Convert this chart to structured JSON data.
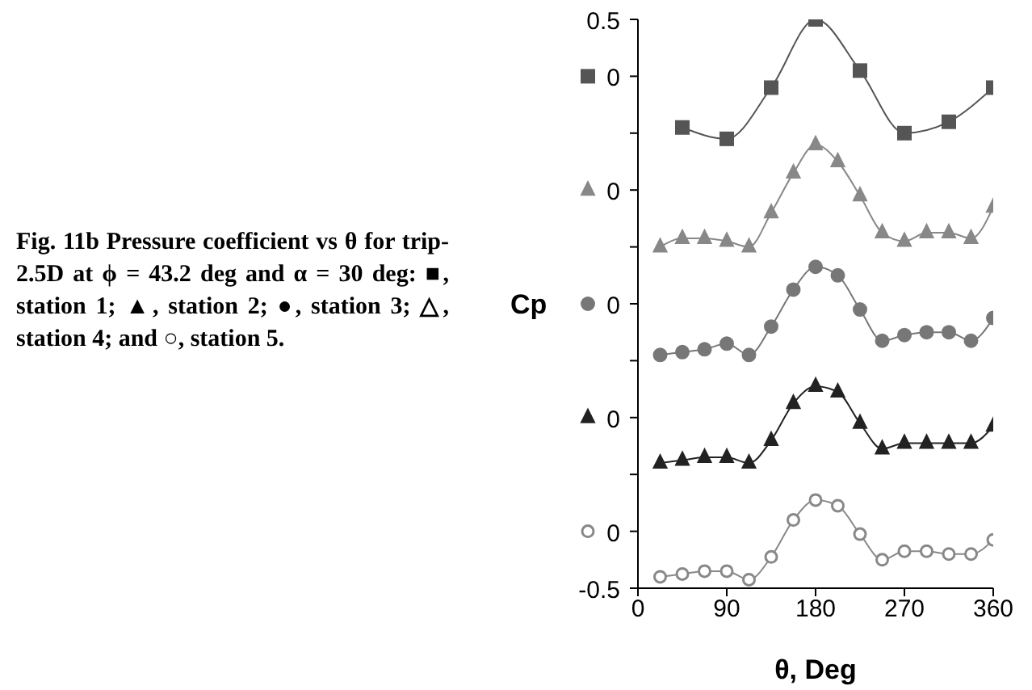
{
  "chart_data": {
    "type": "line",
    "title": "Fig. 11b  Pressure coefficient vs θ for trip-2.5D at ϕ = 43.2 deg and α = 30 deg: ■, station 1; ▲, station 2; ●, station 3; △, station 4; and ○, station 5.",
    "xlabel": "θ, Deg",
    "ylabel": "Cp",
    "xlim": [
      0,
      360
    ],
    "xticks": [
      0,
      90,
      180,
      270,
      360
    ],
    "ylim": [
      -0.5,
      0.5
    ],
    "yticks": [
      0.5,
      {
        "value": 0.4,
        "label": "0"
      },
      {
        "value": 0.3,
        "label": null
      },
      {
        "value": 0.2,
        "label": "0"
      },
      {
        "value": 0.1,
        "label": null
      },
      {
        "value": 0,
        "label": "0"
      },
      {
        "value": -0.1,
        "label": null
      },
      {
        "value": -0.2,
        "label": "0"
      },
      {
        "value": -0.3,
        "label": null
      },
      {
        "value": -0.4,
        "label": "0"
      },
      -0.5
    ],
    "grid": false,
    "legend": false,
    "series": [
      {
        "color": "#555555",
        "marker": "square",
        "x": [
          45,
          90,
          135,
          180,
          225,
          270,
          315,
          360
        ],
        "values": [
          0.31,
          0.29,
          0.38,
          0.5,
          0.41,
          0.3,
          0.32,
          0.38
        ]
      },
      {
        "color": "#888888",
        "marker": "triangle",
        "x": [
          22.5,
          45,
          67.5,
          90,
          112.5,
          135,
          157.5,
          180,
          202.5,
          225,
          247.5,
          270,
          292.5,
          315,
          337.5,
          360
        ],
        "values": [
          0.1,
          0.115,
          0.115,
          0.11,
          0.1,
          0.16,
          0.23,
          0.28,
          0.25,
          0.19,
          0.125,
          0.11,
          0.125,
          0.125,
          0.115,
          0.17
        ]
      },
      {
        "color": "#777777",
        "marker": "circle",
        "x": [
          22.5,
          45,
          67.5,
          90,
          112.5,
          135,
          157.5,
          180,
          202.5,
          225,
          247.5,
          270,
          292.5,
          315,
          337.5,
          360
        ],
        "values": [
          -0.09,
          -0.085,
          -0.08,
          -0.07,
          -0.09,
          -0.04,
          0.025,
          0.065,
          0.05,
          -0.01,
          -0.065,
          -0.055,
          -0.05,
          -0.05,
          -0.065,
          -0.025
        ]
      },
      {
        "color": "#222222",
        "marker": "triangle",
        "x": [
          22.5,
          45,
          67.5,
          90,
          112.5,
          135,
          157.5,
          180,
          202.5,
          225,
          247.5,
          270,
          292.5,
          315,
          337.5,
          360
        ],
        "values": [
          -0.28,
          -0.275,
          -0.27,
          -0.27,
          -0.28,
          -0.24,
          -0.175,
          -0.145,
          -0.155,
          -0.21,
          -0.255,
          -0.245,
          -0.245,
          -0.245,
          -0.245,
          -0.215
        ]
      },
      {
        "color": "#888888",
        "marker": "circle-open",
        "x": [
          22.5,
          45,
          67.5,
          90,
          112.5,
          135,
          157.5,
          180,
          202.5,
          225,
          247.5,
          270,
          292.5,
          315,
          337.5,
          360
        ],
        "values": [
          -0.48,
          -0.475,
          -0.47,
          -0.47,
          -0.485,
          -0.445,
          -0.38,
          -0.345,
          -0.355,
          -0.405,
          -0.45,
          -0.435,
          -0.435,
          -0.44,
          -0.44,
          -0.415
        ]
      }
    ]
  }
}
